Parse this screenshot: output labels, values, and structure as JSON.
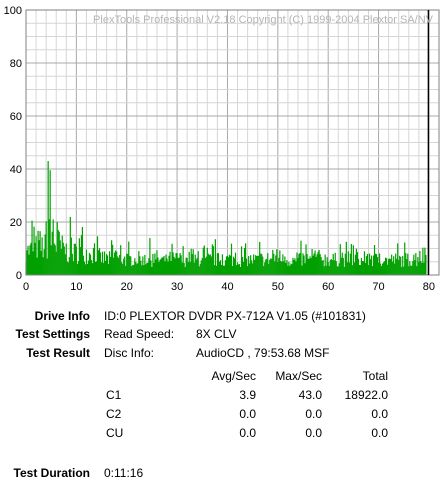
{
  "chart_data": {
    "type": "area",
    "watermark": "PlexTools Professional V2.18 Copyright (C) 1999-2004 Plextor SA/NV",
    "xlim": [
      0,
      82
    ],
    "ylim": [
      0,
      100
    ],
    "x_ticks": [
      "0",
      "10",
      "20",
      "30",
      "40",
      "50",
      "60",
      "70",
      "80"
    ],
    "y_ticks": [
      "0",
      "20",
      "40",
      "60",
      "80",
      "100"
    ],
    "grid": true,
    "disc_end_minute": 79.9,
    "series": [
      {
        "color": "#00a000",
        "x": [
          0,
          1,
          2,
          3,
          4,
          5,
          6,
          7,
          8,
          9,
          10,
          11,
          12,
          13,
          14,
          15,
          16,
          17,
          18,
          19,
          20,
          21,
          22,
          23,
          24,
          25,
          26,
          27,
          28,
          29,
          30,
          31,
          32,
          33,
          34,
          35,
          36,
          37,
          38,
          39,
          40,
          41,
          42,
          43,
          44,
          45,
          46,
          47,
          48,
          49,
          50,
          51,
          52,
          53,
          54,
          55,
          56,
          57,
          58,
          59,
          60,
          61,
          62,
          63,
          64,
          65,
          66,
          67,
          68,
          69,
          70,
          71,
          72,
          73,
          74,
          75,
          76,
          77,
          78,
          79
        ],
        "y_peak": [
          20,
          24,
          28,
          25,
          43,
          36,
          30,
          25,
          22,
          20,
          20,
          20,
          18,
          20,
          16,
          15,
          14,
          16,
          14,
          14,
          13,
          13,
          14,
          12,
          14,
          15,
          13,
          12,
          14,
          14,
          12,
          12,
          14,
          12,
          13,
          12,
          13,
          14,
          13,
          13,
          14,
          14,
          12,
          12,
          13,
          13,
          14,
          12,
          14,
          16,
          14,
          13,
          12,
          11,
          13,
          14,
          13,
          14,
          15,
          14,
          14,
          13,
          16,
          13,
          14,
          14,
          12,
          12,
          13,
          13,
          14,
          12,
          13,
          13,
          13,
          13,
          14,
          15,
          18,
          22
        ],
        "y_floor": [
          5,
          5,
          5,
          5,
          5,
          5,
          4,
          4,
          4,
          4,
          4,
          4,
          4,
          4,
          3,
          3,
          3,
          3,
          3,
          3,
          3,
          3,
          3,
          3,
          3,
          3,
          3,
          3,
          3,
          3,
          3,
          3,
          3,
          3,
          3,
          3,
          3,
          3,
          3,
          3,
          3,
          3,
          3,
          3,
          3,
          3,
          3,
          3,
          3,
          3,
          3,
          3,
          3,
          3,
          3,
          3,
          3,
          3,
          3,
          3,
          3,
          3,
          3,
          3,
          3,
          3,
          3,
          3,
          3,
          3,
          3,
          3,
          3,
          3,
          3,
          3,
          3,
          3,
          3,
          3
        ]
      }
    ]
  },
  "info": {
    "drive_info_label": "Drive Info",
    "drive_info_value": "ID:0 PLEXTOR DVDR PX-712A V1.05 (#101831)",
    "test_settings_label": "Test Settings",
    "read_speed_label": "Read Speed:",
    "read_speed_value": "8X CLV",
    "test_result_label": "Test Result",
    "disc_info_label": "Disc Info:",
    "disc_info_value": "AudioCD , 79:53.68 MSF",
    "table": {
      "headers": [
        "Avg/Sec",
        "Max/Sec",
        "Total"
      ],
      "rows": [
        {
          "name": "C1",
          "avg": "3.9",
          "max": "43.0",
          "total": "18922.0"
        },
        {
          "name": "C2",
          "avg": "0.0",
          "max": "0.0",
          "total": "0.0"
        },
        {
          "name": "CU",
          "avg": "0.0",
          "max": "0.0",
          "total": "0.0"
        }
      ]
    },
    "test_duration_label": "Test Duration",
    "test_duration_value": "0:11:16"
  }
}
